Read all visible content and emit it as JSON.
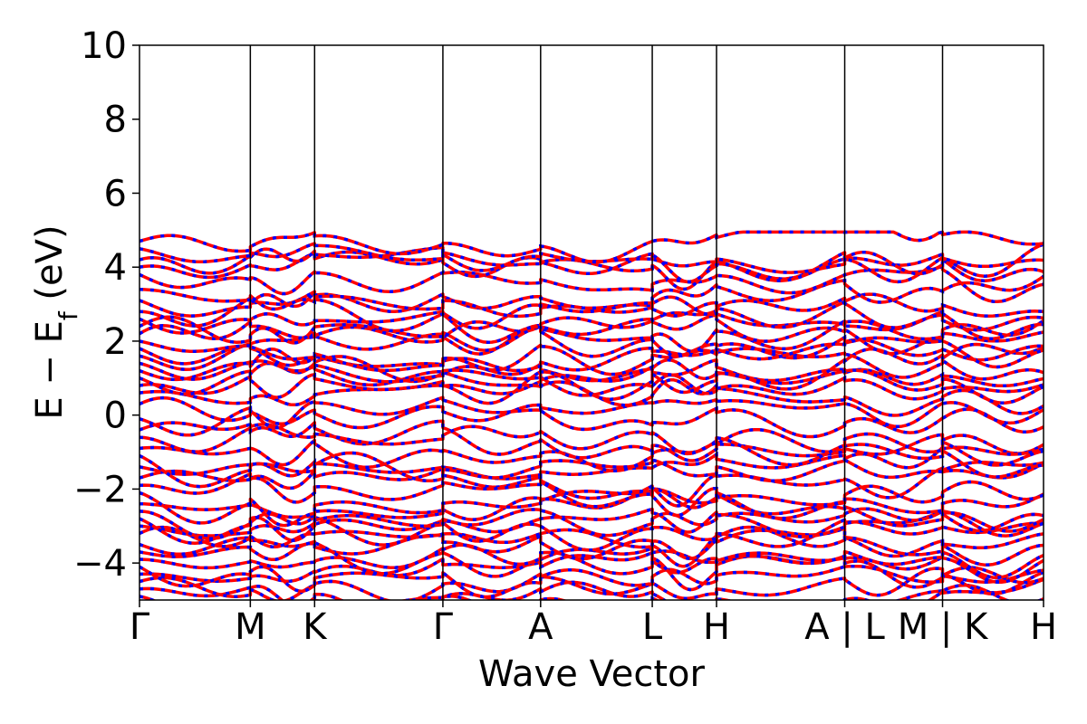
{
  "chart_data": {
    "type": "line",
    "title": "",
    "xlabel": "Wave Vector",
    "ylabel": "E − E_f (eV)",
    "ylabel_parts": {
      "main": "E − E",
      "sub": "f",
      "unit": " (eV)"
    },
    "ylim": [
      -5,
      10
    ],
    "yticks": [
      10,
      8,
      6,
      4,
      2,
      0,
      -2,
      -4
    ],
    "ytick_labels": [
      "10",
      "8",
      "6",
      "4",
      "2",
      "0",
      "−2",
      "−4"
    ],
    "grid": false,
    "legend": "none",
    "xlim": [
      0,
      1
    ],
    "kpoints": [
      {
        "label": "Γ",
        "x": 0.0
      },
      {
        "label": "M",
        "x": 0.1226
      },
      {
        "label": "K",
        "x": 0.1937
      },
      {
        "label": "Γ",
        "x": 0.3356
      },
      {
        "label": "A",
        "x": 0.4437
      },
      {
        "label": "L",
        "x": 0.5672
      },
      {
        "label": "H",
        "x": 0.6383
      },
      {
        "label": "A | L",
        "x": 0.7801
      },
      {
        "label": "M | K",
        "x": 0.8883
      },
      {
        "label": "H",
        "x": 1.0
      }
    ],
    "series_colors": {
      "spin_up": "#ff0000",
      "spin_down": "#0000ff"
    },
    "band_energies_approx_eV": {
      "valence": [
        -4.9,
        -4.7,
        -4.5,
        -4.3,
        -4.1,
        -3.9,
        -3.7,
        -3.5,
        -3.2,
        -3.0,
        -2.8,
        -2.6,
        -2.4,
        -2.1,
        -1.9,
        -1.7,
        -1.4,
        -1.1,
        -0.9,
        -0.6,
        -0.4,
        -0.1
      ],
      "conduction": [
        0.3,
        0.6,
        0.8,
        1.0,
        1.2,
        1.4,
        1.6,
        1.8,
        2.0,
        2.2,
        2.4,
        2.6,
        2.8,
        3.1,
        3.4,
        3.8,
        4.0,
        4.2,
        4.5,
        4.7
      ]
    }
  }
}
